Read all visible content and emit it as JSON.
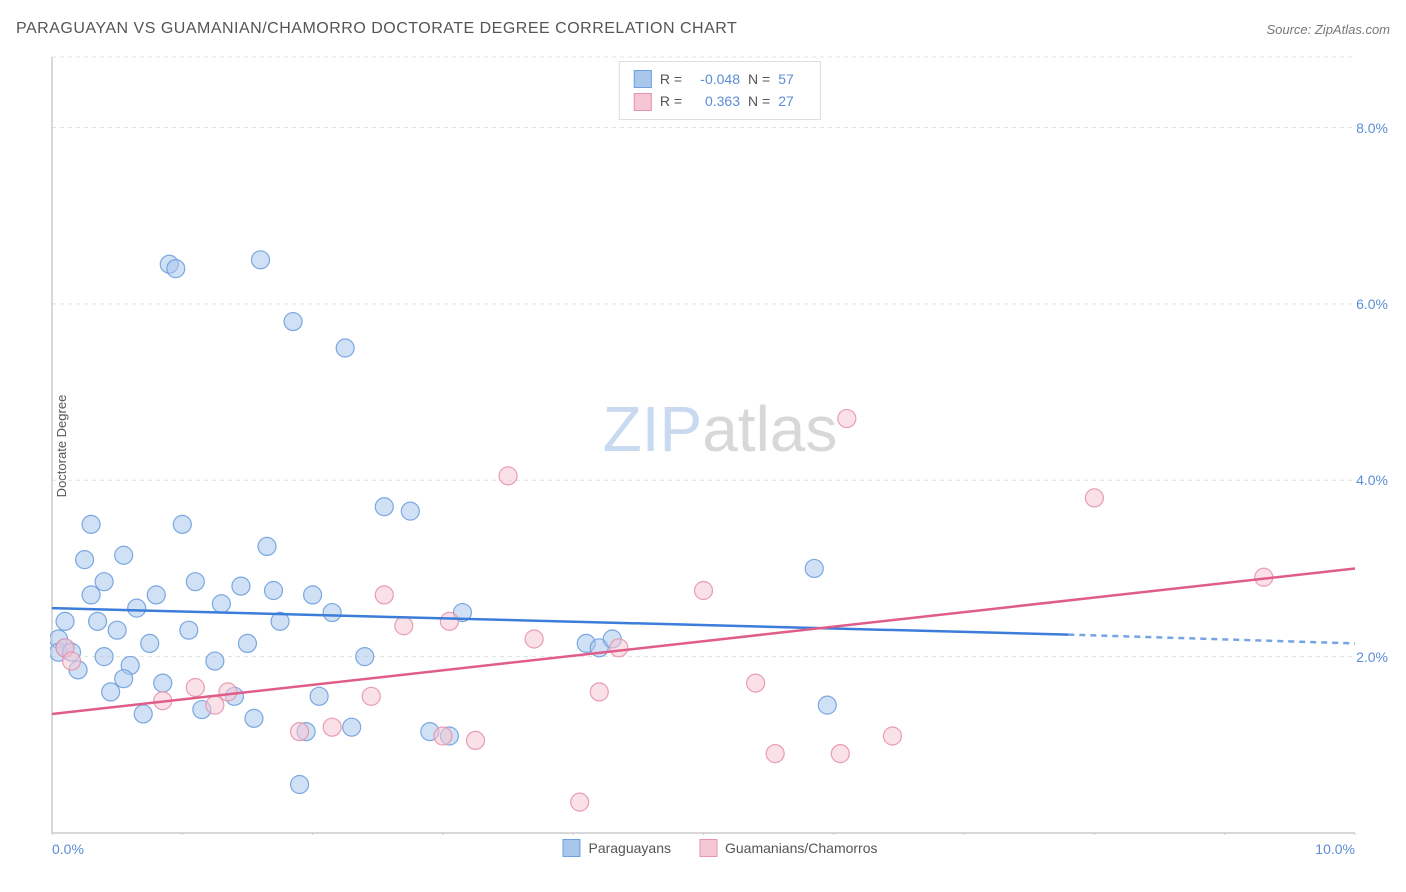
{
  "header": {
    "title": "PARAGUAYAN VS GUAMANIAN/CHAMORRO DOCTORATE DEGREE CORRELATION CHART",
    "source": "Source: ZipAtlas.com"
  },
  "chart": {
    "type": "scatter",
    "y_axis_label": "Doctorate Degree",
    "xlim": [
      0,
      10
    ],
    "ylim": [
      0,
      8.8
    ],
    "x_ticks": [
      0,
      1,
      2,
      3,
      4,
      5,
      6,
      7,
      8,
      9,
      10
    ],
    "x_tick_labels_shown": {
      "0": "0.0%",
      "10": "10.0%"
    },
    "y_ticks": [
      2,
      4,
      6,
      8
    ],
    "y_tick_labels": [
      "2.0%",
      "4.0%",
      "6.0%",
      "8.0%"
    ],
    "background_color": "#ffffff",
    "grid_color": "#e0e0e0",
    "grid_dash": "4,4",
    "axis_color": "#cccccc",
    "tick_label_color": "#5b8dd6",
    "tick_label_fontsize": 14,
    "axis_label_color": "#555555",
    "axis_label_fontsize": 13,
    "marker_radius": 9,
    "marker_opacity": 0.55,
    "marker_stroke_width": 1.2,
    "line_width": 2.5
  },
  "series": {
    "paraguayans": {
      "label": "Paraguayans",
      "fill_color": "#a9c7ec",
      "stroke_color": "#6ea0dd",
      "line_color": "#3b7dd8",
      "r": -0.048,
      "n": 57,
      "trend": {
        "x1": 0.0,
        "y1": 2.55,
        "x2": 7.8,
        "y2": 2.25,
        "x2_dash": 10.0,
        "y2_dash": 2.15
      },
      "points": [
        [
          0.05,
          2.2
        ],
        [
          0.05,
          2.05
        ],
        [
          0.1,
          2.1
        ],
        [
          0.1,
          2.4
        ],
        [
          0.25,
          3.1
        ],
        [
          0.3,
          2.7
        ],
        [
          0.3,
          3.5
        ],
        [
          0.35,
          2.4
        ],
        [
          0.4,
          2.0
        ],
        [
          0.4,
          2.85
        ],
        [
          0.45,
          1.6
        ],
        [
          0.5,
          2.3
        ],
        [
          0.55,
          3.15
        ],
        [
          0.6,
          1.9
        ],
        [
          0.65,
          2.55
        ],
        [
          0.7,
          1.35
        ],
        [
          0.75,
          2.15
        ],
        [
          0.8,
          2.7
        ],
        [
          0.85,
          1.7
        ],
        [
          0.9,
          6.45
        ],
        [
          0.95,
          6.4
        ],
        [
          1.0,
          3.5
        ],
        [
          1.05,
          2.3
        ],
        [
          1.1,
          2.85
        ],
        [
          1.15,
          1.4
        ],
        [
          1.25,
          1.95
        ],
        [
          1.3,
          2.6
        ],
        [
          1.4,
          1.55
        ],
        [
          1.45,
          2.8
        ],
        [
          1.5,
          2.15
        ],
        [
          1.55,
          1.3
        ],
        [
          1.6,
          6.5
        ],
        [
          1.65,
          3.25
        ],
        [
          1.7,
          2.75
        ],
        [
          1.75,
          2.4
        ],
        [
          1.85,
          5.8
        ],
        [
          1.9,
          0.55
        ],
        [
          1.95,
          1.15
        ],
        [
          2.0,
          2.7
        ],
        [
          2.05,
          1.55
        ],
        [
          2.15,
          2.5
        ],
        [
          2.25,
          5.5
        ],
        [
          2.3,
          1.2
        ],
        [
          2.4,
          2.0
        ],
        [
          2.55,
          3.7
        ],
        [
          2.75,
          3.65
        ],
        [
          2.9,
          1.15
        ],
        [
          3.05,
          1.1
        ],
        [
          3.15,
          2.5
        ],
        [
          4.1,
          2.15
        ],
        [
          4.2,
          2.1
        ],
        [
          4.3,
          2.2
        ],
        [
          5.85,
          3.0
        ],
        [
          5.95,
          1.45
        ],
        [
          0.15,
          2.05
        ],
        [
          0.2,
          1.85
        ],
        [
          0.55,
          1.75
        ]
      ]
    },
    "guamanians": {
      "label": "Guamanians/Chamorros",
      "fill_color": "#f5c6d3",
      "stroke_color": "#e693ac",
      "line_color": "#e15d89",
      "r": 0.363,
      "n": 27,
      "trend": {
        "x1": 0.0,
        "y1": 1.35,
        "x2": 10.0,
        "y2": 3.0
      },
      "points": [
        [
          0.1,
          2.1
        ],
        [
          0.15,
          1.95
        ],
        [
          0.85,
          1.5
        ],
        [
          1.1,
          1.65
        ],
        [
          1.25,
          1.45
        ],
        [
          1.35,
          1.6
        ],
        [
          1.9,
          1.15
        ],
        [
          2.15,
          1.2
        ],
        [
          2.45,
          1.55
        ],
        [
          2.55,
          2.7
        ],
        [
          2.7,
          2.35
        ],
        [
          3.0,
          1.1
        ],
        [
          3.05,
          2.4
        ],
        [
          3.25,
          1.05
        ],
        [
          3.5,
          4.05
        ],
        [
          3.7,
          2.2
        ],
        [
          4.05,
          0.35
        ],
        [
          4.2,
          1.6
        ],
        [
          4.35,
          2.1
        ],
        [
          5.0,
          2.75
        ],
        [
          5.4,
          1.7
        ],
        [
          5.55,
          0.9
        ],
        [
          6.05,
          0.9
        ],
        [
          6.1,
          4.7
        ],
        [
          6.45,
          1.1
        ],
        [
          8.0,
          3.8
        ],
        [
          9.3,
          2.9
        ]
      ]
    }
  },
  "legend_top": {
    "rows": [
      {
        "series": "paraguayans",
        "r_label": "R =",
        "r_value": "-0.048",
        "n_label": "N =",
        "n_value": "57"
      },
      {
        "series": "guamanians",
        "r_label": "R =",
        "r_value": "0.363",
        "n_label": "N =",
        "n_value": "27"
      }
    ]
  },
  "legend_bottom": [
    "paraguayans",
    "guamanians"
  ],
  "watermark": {
    "part1": "ZIP",
    "part2": "atlas",
    "color1": "#c8d9f0",
    "color2": "#d8d8d8",
    "fontsize": 64
  }
}
